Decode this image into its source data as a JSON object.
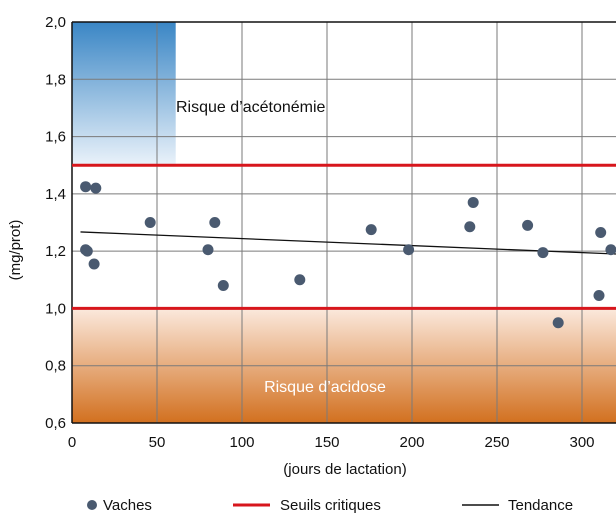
{
  "chart_data": {
    "type": "scatter",
    "title": "",
    "xlabel": "(jours de lactation)",
    "ylabel": "(mg/prot)",
    "xlim": [
      0,
      320
    ],
    "ylim": [
      0.6,
      2.0
    ],
    "x_ticks": [
      0,
      50,
      100,
      150,
      200,
      250,
      300
    ],
    "y_ticks": [
      0.6,
      0.8,
      1.0,
      1.2,
      1.4,
      1.6,
      1.8,
      2.0
    ],
    "x_tick_labels": [
      "0",
      "50",
      "100",
      "150",
      "200",
      "250",
      "300"
    ],
    "y_tick_labels": [
      "0,6",
      "0,8",
      "1,0",
      "1,2",
      "1,4",
      "1,6",
      "1,8",
      "2,0"
    ],
    "grid": true,
    "legend_position": "bottom",
    "zones": [
      {
        "label": "Risque d’acétonémie",
        "x_range": [
          0,
          61
        ],
        "y_range": [
          1.5,
          2.0
        ],
        "color_top": "#3a86c5",
        "color_bottom": "#eaf2fa"
      },
      {
        "label": "Risque d’acidose",
        "y_range": [
          0.6,
          1.0
        ],
        "color_top": "#fbe9dd",
        "color_bottom": "#d2701f"
      }
    ],
    "thresholds": {
      "name": "Seuils critiques",
      "values": [
        1.0,
        1.5
      ],
      "color": "#d7161c"
    },
    "series": [
      {
        "name": "Vaches",
        "color": "#4a5a70",
        "points": [
          {
            "x": 8,
            "y": 1.425
          },
          {
            "x": 14,
            "y": 1.42
          },
          {
            "x": 8,
            "y": 1.205
          },
          {
            "x": 9,
            "y": 1.2
          },
          {
            "x": 13,
            "y": 1.155
          },
          {
            "x": 46,
            "y": 1.3
          },
          {
            "x": 80,
            "y": 1.205
          },
          {
            "x": 84,
            "y": 1.3
          },
          {
            "x": 89,
            "y": 1.08
          },
          {
            "x": 134,
            "y": 1.1
          },
          {
            "x": 176,
            "y": 1.275
          },
          {
            "x": 198,
            "y": 1.205
          },
          {
            "x": 234,
            "y": 1.285
          },
          {
            "x": 236,
            "y": 1.37
          },
          {
            "x": 268,
            "y": 1.29
          },
          {
            "x": 277,
            "y": 1.195
          },
          {
            "x": 286,
            "y": 0.95
          },
          {
            "x": 310,
            "y": 1.045
          },
          {
            "x": 311,
            "y": 1.265
          },
          {
            "x": 317,
            "y": 1.205
          }
        ]
      }
    ],
    "trend": {
      "name": "Tendance",
      "x": [
        5,
        320
      ],
      "y": [
        1.267,
        1.19
      ],
      "color": "#111111"
    }
  }
}
